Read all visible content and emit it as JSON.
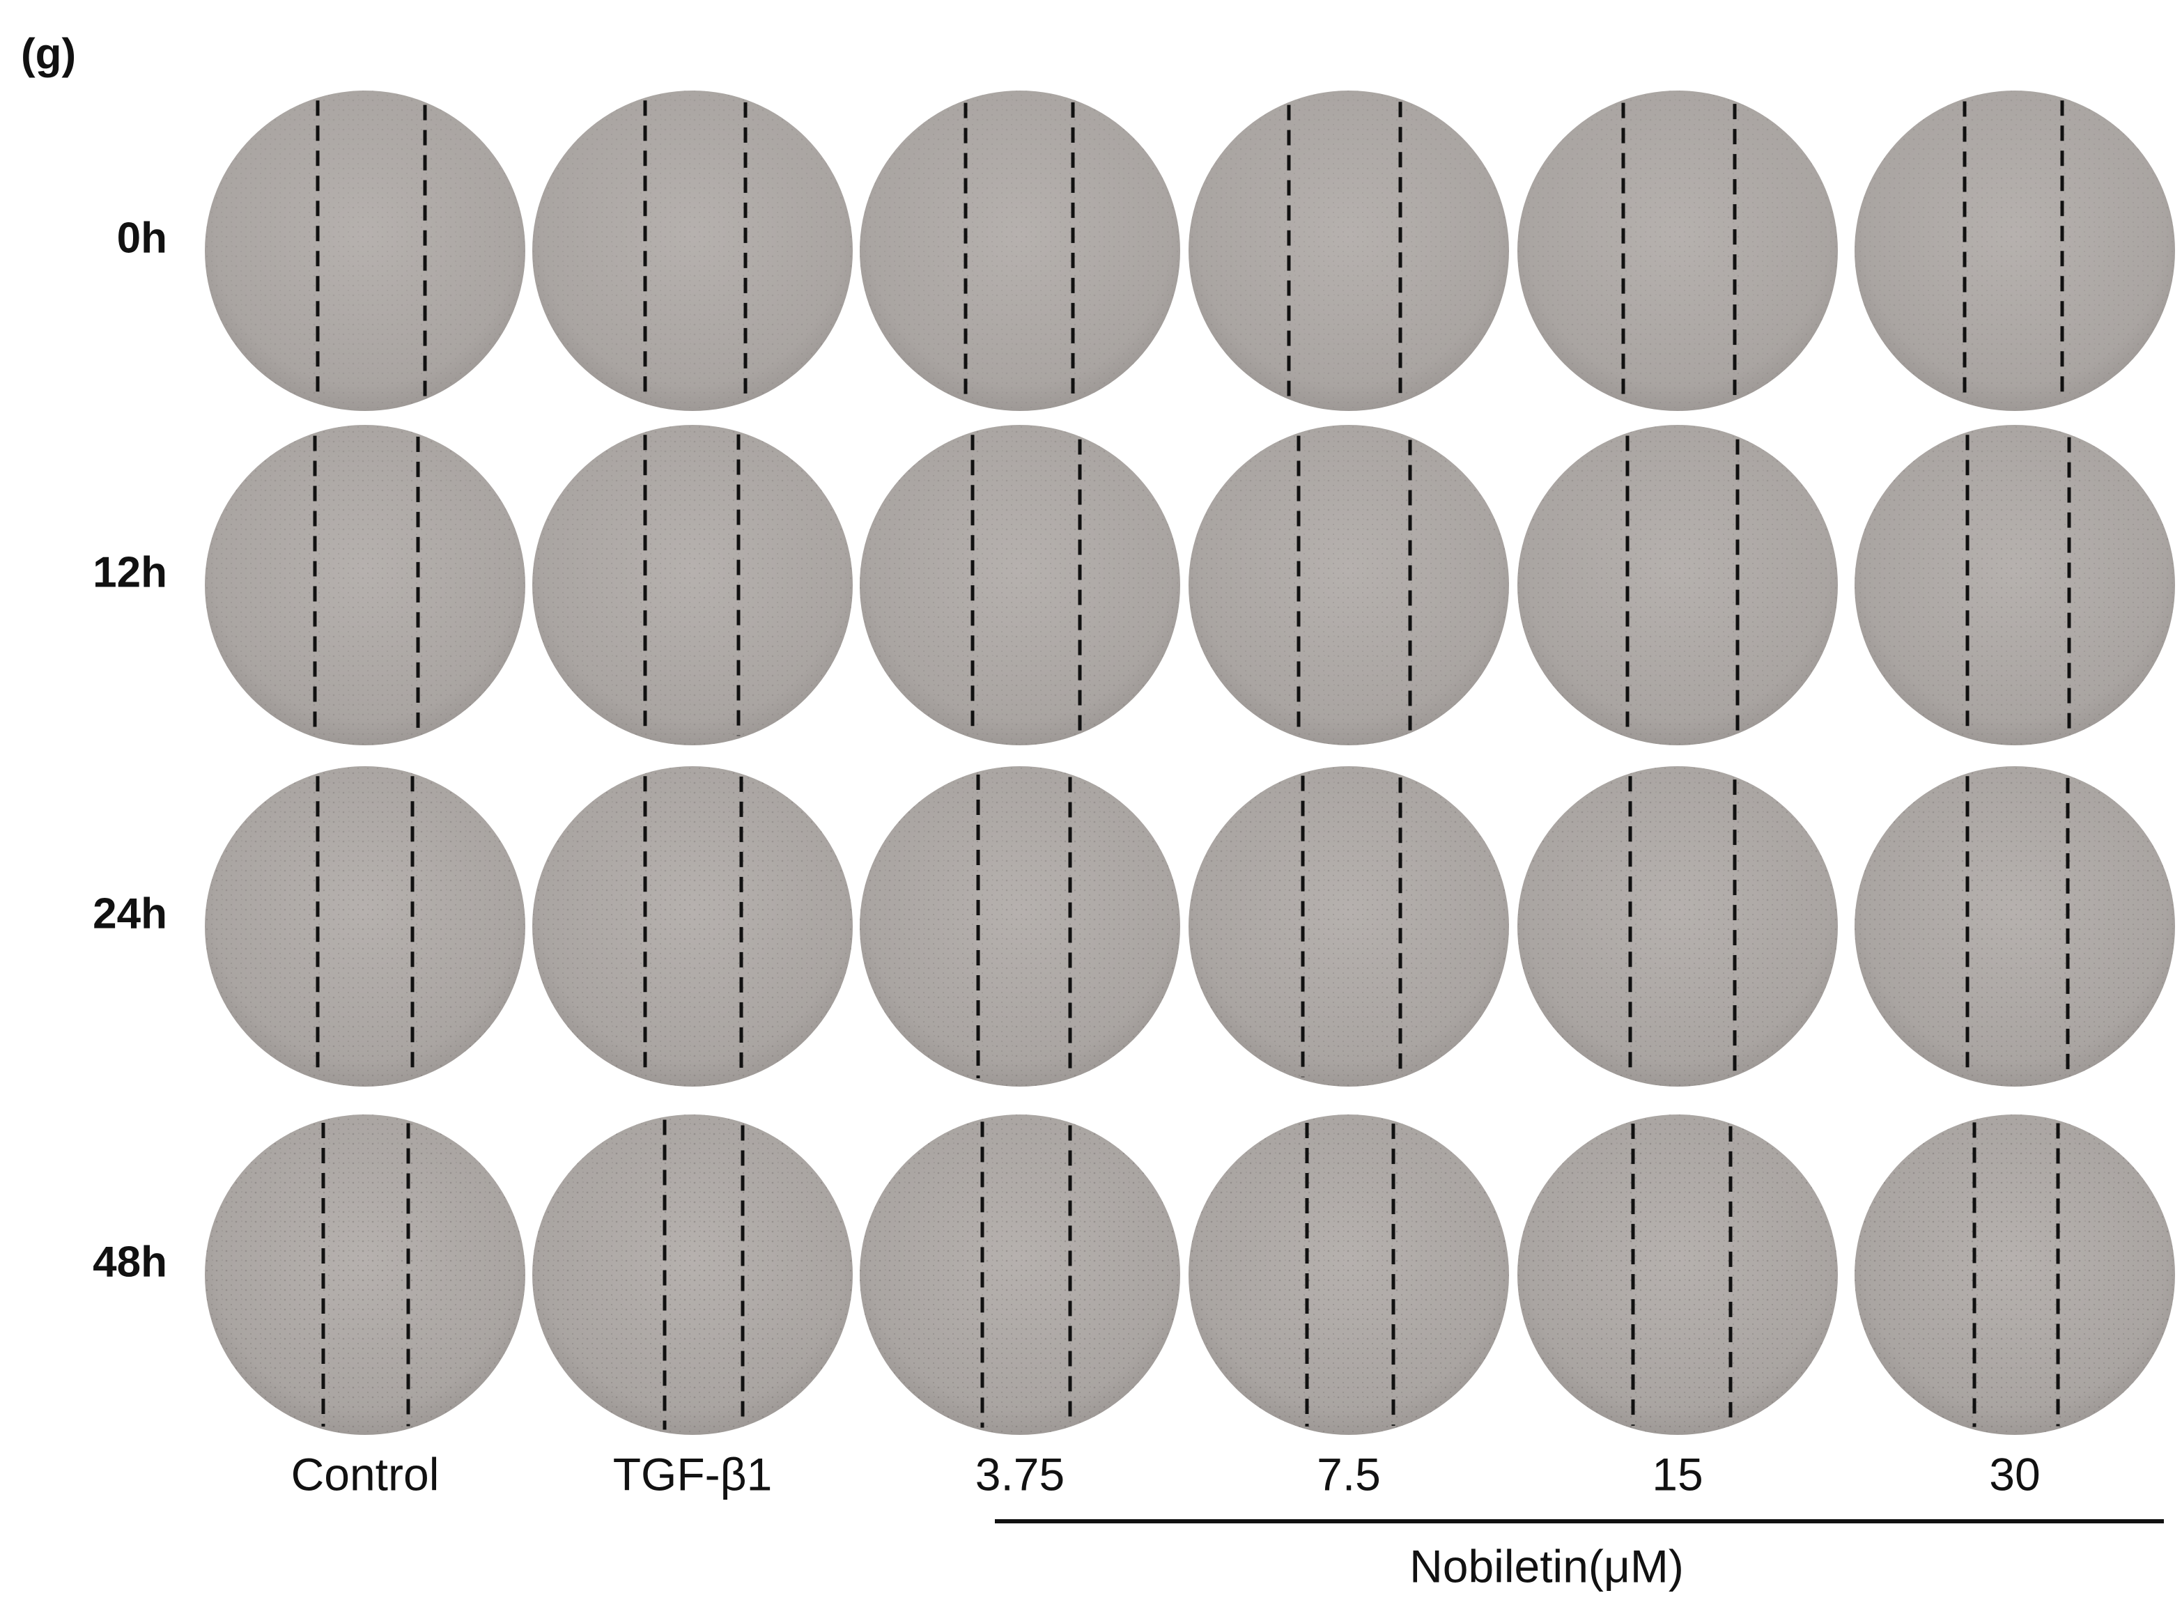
{
  "panel_label": "(g)",
  "row_labels": [
    "0h",
    "12h",
    "24h",
    "48h"
  ],
  "column_labels": [
    "Control",
    "TGF-β1",
    "3.75",
    "7.5",
    "15",
    "30"
  ],
  "group_label": "Nobiletin(μM)"
}
